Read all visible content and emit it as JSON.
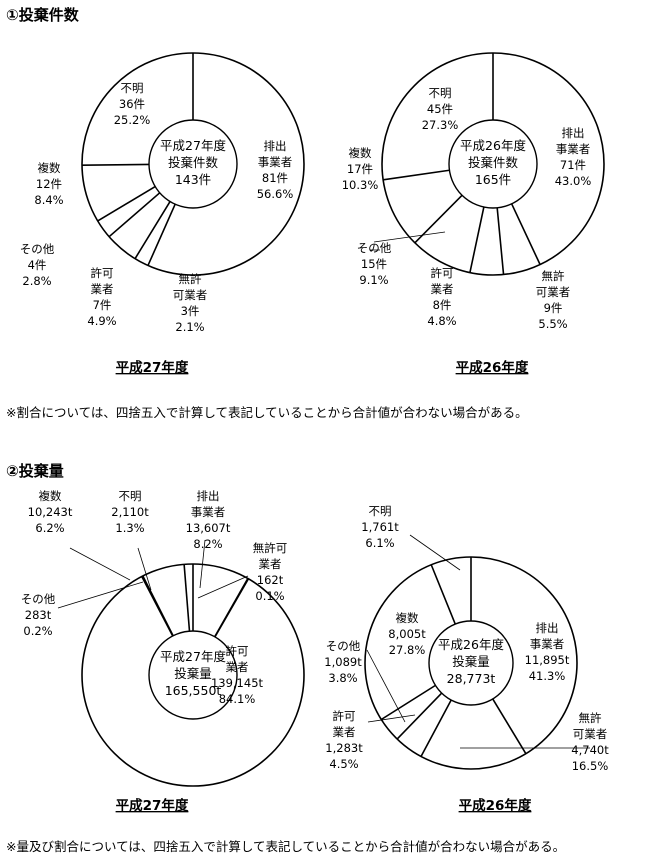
{
  "section1": {
    "title": "①投棄件数",
    "note": "※割合については、四捨五入で計算して表記していることから合計値が合わない場合がある。"
  },
  "section2": {
    "title": "②投棄量",
    "note": "※量及び割合については、四捨五入で計算して表記していることから合計値が合わない場合がある。"
  },
  "chart_data": [
    {
      "type": "pie",
      "donut": true,
      "title": "①投棄件数",
      "year_label": "平成27年度",
      "center": [
        "平成27年度",
        "投棄件数",
        "143件"
      ],
      "slices": [
        {
          "label": [
            "排出",
            "事業者"
          ],
          "value": 81,
          "value_text": "81件",
          "percent": "56.6%"
        },
        {
          "label": [
            "無許",
            "可業者"
          ],
          "value": 3,
          "value_text": "3件",
          "percent": "2.1%"
        },
        {
          "label": [
            "許可",
            "業者"
          ],
          "value": 7,
          "value_text": "7件",
          "percent": "4.9%"
        },
        {
          "label": [
            "その他"
          ],
          "value": 4,
          "value_text": "4件",
          "percent": "2.8%"
        },
        {
          "label": [
            "複数"
          ],
          "value": 12,
          "value_text": "12件",
          "percent": "8.4%"
        },
        {
          "label": [
            "不明"
          ],
          "value": 36,
          "value_text": "36件",
          "percent": "25.2%"
        }
      ]
    },
    {
      "type": "pie",
      "donut": true,
      "title": "①投棄件数",
      "year_label": "平成26年度",
      "center": [
        "平成26年度",
        "投棄件数",
        "165件"
      ],
      "slices": [
        {
          "label": [
            "排出",
            "事業者"
          ],
          "value": 71,
          "value_text": "71件",
          "percent": "43.0%"
        },
        {
          "label": [
            "無許",
            "可業者"
          ],
          "value": 9,
          "value_text": "9件",
          "percent": "5.5%"
        },
        {
          "label": [
            "許可",
            "業者"
          ],
          "value": 8,
          "value_text": "8件",
          "percent": "4.8%"
        },
        {
          "label": [
            "その他"
          ],
          "value": 15,
          "value_text": "15件",
          "percent": "9.1%"
        },
        {
          "label": [
            "複数"
          ],
          "value": 17,
          "value_text": "17件",
          "percent": "10.3%"
        },
        {
          "label": [
            "不明"
          ],
          "value": 45,
          "value_text": "45件",
          "percent": "27.3%"
        }
      ]
    },
    {
      "type": "pie",
      "donut": true,
      "title": "②投棄量",
      "year_label": "平成27年度",
      "center": [
        "平成27年度",
        "投棄量",
        "165,550t"
      ],
      "slices": [
        {
          "label": [
            "排出",
            "事業者"
          ],
          "value": 13607,
          "value_text": "13,607t",
          "percent": "8.2%"
        },
        {
          "label": [
            "無許可",
            "業者"
          ],
          "value": 162,
          "value_text": "162t",
          "percent": "0.1%"
        },
        {
          "label": [
            "許可",
            "業者"
          ],
          "value": 139145,
          "value_text": "139,145t",
          "percent": "84.1%"
        },
        {
          "label": [
            "その他"
          ],
          "value": 283,
          "value_text": "283t",
          "percent": "0.2%"
        },
        {
          "label": [
            "複数"
          ],
          "value": 10243,
          "value_text": "10,243t",
          "percent": "6.2%"
        },
        {
          "label": [
            "不明"
          ],
          "value": 2110,
          "value_text": "2,110t",
          "percent": "1.3%"
        }
      ]
    },
    {
      "type": "pie",
      "donut": true,
      "title": "②投棄量",
      "year_label": "平成26年度",
      "center": [
        "平成26年度",
        "投棄量",
        "28,773t"
      ],
      "slices": [
        {
          "label": [
            "排出",
            "事業者"
          ],
          "value": 11895,
          "value_text": "11,895t",
          "percent": "41.3%"
        },
        {
          "label": [
            "無許",
            "可業者"
          ],
          "value": 4740,
          "value_text": "4,740t",
          "percent": "16.5%"
        },
        {
          "label": [
            "許可",
            "業者"
          ],
          "value": 1283,
          "value_text": "1,283t",
          "percent": "4.5%"
        },
        {
          "label": [
            "その他"
          ],
          "value": 1089,
          "value_text": "1,089t",
          "percent": "3.8%"
        },
        {
          "label": [
            "複数"
          ],
          "value": 8005,
          "value_text": "8,005t",
          "percent": "27.8%"
        },
        {
          "label": [
            "不明"
          ],
          "value": 1761,
          "value_text": "1,761t",
          "percent": "6.1%"
        }
      ]
    }
  ]
}
